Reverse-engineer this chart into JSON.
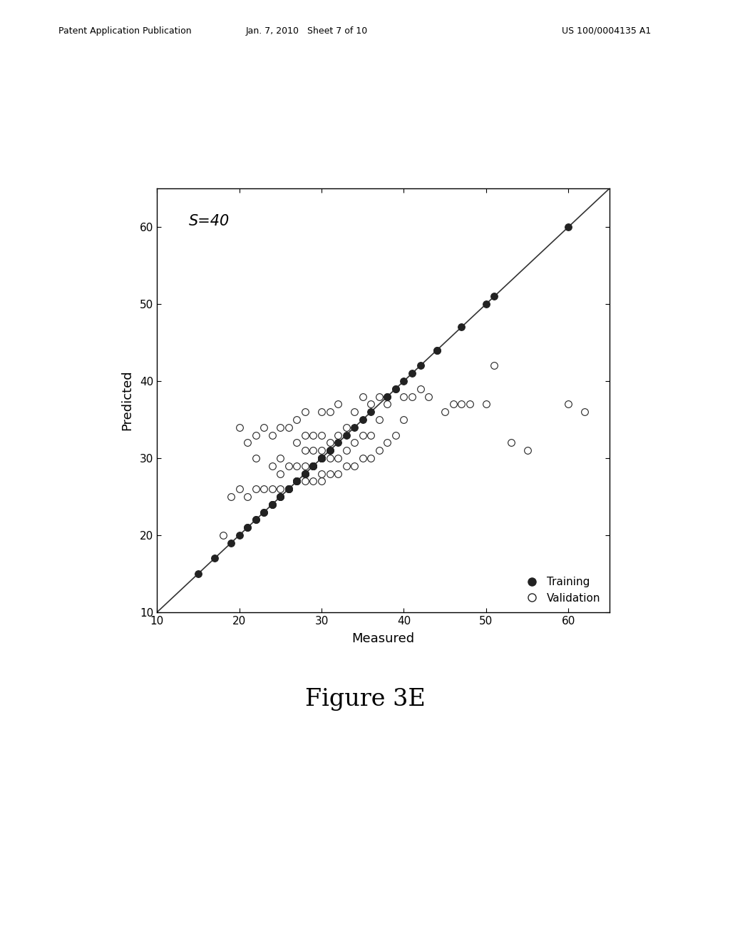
{
  "title_annotation": "S=40",
  "xlabel": "Measured",
  "ylabel": "Predicted",
  "figure_caption": "Figure 3E",
  "header_left": "Patent Application Publication",
  "header_center": "Jan. 7, 2010   Sheet 7 of 10",
  "header_right": "US 100/0004135 A1",
  "xlim": [
    10,
    65
  ],
  "ylim": [
    10,
    65
  ],
  "xticks": [
    10,
    20,
    30,
    40,
    50,
    60
  ],
  "yticks": [
    10,
    20,
    30,
    40,
    50,
    60
  ],
  "diagonal_line": [
    10,
    65
  ],
  "training_x": [
    15,
    17,
    19,
    20,
    21,
    21,
    22,
    22,
    23,
    23,
    24,
    24,
    24,
    25,
    25,
    25,
    26,
    26,
    26,
    27,
    27,
    27,
    28,
    28,
    28,
    28,
    29,
    29,
    29,
    29,
    30,
    30,
    30,
    30,
    30,
    31,
    31,
    32,
    33,
    34,
    35,
    36,
    38,
    38,
    39,
    40,
    41,
    42,
    44,
    47,
    50,
    51,
    60
  ],
  "training_y": [
    15,
    17,
    19,
    20,
    21,
    21,
    22,
    22,
    23,
    23,
    24,
    24,
    24,
    25,
    25,
    25,
    26,
    26,
    26,
    27,
    27,
    27,
    28,
    28,
    28,
    28,
    29,
    29,
    29,
    29,
    30,
    30,
    30,
    30,
    30,
    31,
    31,
    32,
    33,
    34,
    35,
    36,
    38,
    38,
    39,
    40,
    41,
    42,
    44,
    47,
    50,
    51,
    60
  ],
  "validation_x": [
    18,
    19,
    20,
    20,
    21,
    21,
    22,
    22,
    22,
    23,
    23,
    24,
    24,
    24,
    25,
    25,
    25,
    25,
    26,
    26,
    26,
    27,
    27,
    27,
    27,
    28,
    28,
    28,
    28,
    28,
    29,
    29,
    29,
    29,
    30,
    30,
    30,
    30,
    30,
    30,
    31,
    31,
    31,
    31,
    32,
    32,
    32,
    32,
    33,
    33,
    33,
    34,
    34,
    34,
    35,
    35,
    35,
    36,
    36,
    36,
    37,
    37,
    37,
    38,
    38,
    39,
    39,
    40,
    40,
    41,
    42,
    43,
    44,
    45,
    46,
    47,
    48,
    50,
    51,
    53,
    55,
    60,
    62
  ],
  "validation_y": [
    20,
    25,
    26,
    34,
    25,
    32,
    26,
    30,
    33,
    26,
    34,
    26,
    29,
    33,
    26,
    28,
    30,
    34,
    26,
    29,
    34,
    27,
    29,
    32,
    35,
    27,
    29,
    31,
    33,
    36,
    27,
    29,
    31,
    33,
    27,
    28,
    30,
    31,
    33,
    36,
    28,
    30,
    32,
    36,
    28,
    30,
    33,
    37,
    29,
    31,
    34,
    29,
    32,
    36,
    30,
    33,
    38,
    30,
    33,
    37,
    31,
    35,
    38,
    32,
    37,
    33,
    39,
    35,
    38,
    38,
    39,
    38,
    44,
    36,
    37,
    37,
    37,
    37,
    42,
    32,
    31,
    37,
    36
  ],
  "bg_color": "#ffffff",
  "training_color": "#222222",
  "validation_color": "#ffffff",
  "validation_edge_color": "#222222",
  "marker_size": 7,
  "line_color": "#333333",
  "line_width": 1.2
}
